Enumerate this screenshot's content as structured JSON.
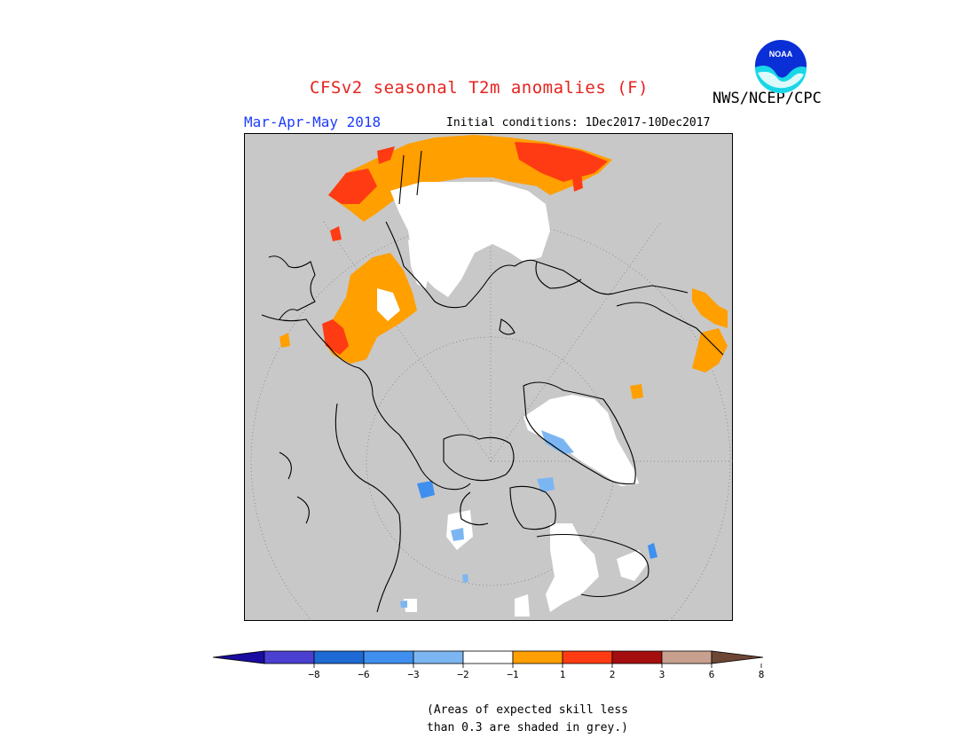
{
  "header": {
    "title": "CFSv2 seasonal T2m anomalies (F)",
    "agency": "NWS/NCEP/CPC",
    "logo_text": "NOAA",
    "season": "Mar-Apr-May 2018",
    "initial_conditions": "Initial conditions: 1Dec2017-10Dec2017"
  },
  "map": {
    "projection": "north polar stereographic",
    "background_color": "#c8c8c8",
    "land_outline_color": "#000000",
    "grid": "dotted lat/lon circles"
  },
  "colorbar": {
    "ticks": [
      "-8",
      "-6",
      "-3",
      "-2",
      "-1",
      "1",
      "2",
      "3",
      "6",
      "8"
    ],
    "colors": [
      "#1a0ca0",
      "#4a3fd0",
      "#1e6ad4",
      "#3f8fef",
      "#7cb6f2",
      "#ffffff",
      "#ff9f00",
      "#ff3b13",
      "#a50e0e",
      "#c7a08f",
      "#6e4636"
    ]
  },
  "footnote": {
    "line1": "(Areas of expected skill less",
    "line2": "than 0.3 are shaded in grey.)"
  }
}
